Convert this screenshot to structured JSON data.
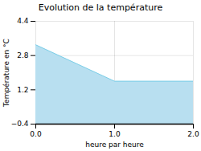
{
  "chart_data": {
    "type": "area",
    "title": "Evolution de la température",
    "xlabel": "heure par heure",
    "ylabel": "Température en °C",
    "x": [
      0,
      1,
      2
    ],
    "values": [
      3.3,
      1.6,
      1.6
    ],
    "xlim": [
      0,
      2
    ],
    "ylim": [
      -0.4,
      4.4
    ],
    "xticks": [
      0,
      1,
      2
    ],
    "yticks": [
      -0.4,
      1.2,
      2.8,
      4.4
    ],
    "colors": [
      "#b8dff0",
      "#7dcfe8"
    ],
    "grid": true
  }
}
